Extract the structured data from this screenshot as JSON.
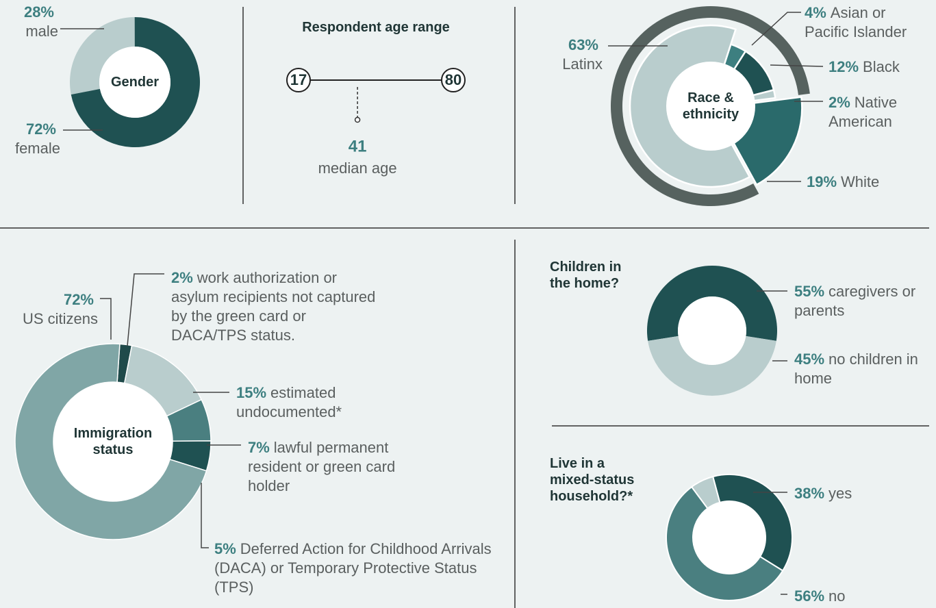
{
  "chart_data": [
    {
      "type": "donut",
      "title": "Gender",
      "categories": [
        "male",
        "female"
      ],
      "values": [
        28,
        72
      ],
      "value_labels": [
        "28%",
        "72%"
      ],
      "colors": [
        "#b9cdcd",
        "#1f5152"
      ]
    },
    {
      "type": "range",
      "title": "Respondent age range",
      "min": 17,
      "max": 80,
      "median": 41,
      "median_label": "median age"
    },
    {
      "type": "donut",
      "title": "Race & ethnicity",
      "categories": [
        "Asian or Pacific Islander",
        "Black",
        "Native American",
        "White",
        "Latinx"
      ],
      "values": [
        4,
        12,
        2,
        19,
        63
      ],
      "value_labels": [
        "4%",
        "12%",
        "2%",
        "19%",
        "63%"
      ],
      "colors": [
        "#3d7f80",
        "#1f5152",
        "#b9cdcd",
        "#2a6a6b",
        "#b9cdcd"
      ]
    },
    {
      "type": "donut",
      "title": "Immigration status",
      "categories": [
        "work authorization or asylum recipients not captured by the green card or DACA/TPS status.",
        "estimated undocumented*",
        "lawful permanent resident or green card holder",
        "Deferred Action for Childhood Arrivals (DACA) or Temporary Protective Status (TPS)",
        "US citizens"
      ],
      "values": [
        2,
        15,
        7,
        5,
        72
      ],
      "value_labels": [
        "2%",
        "15%",
        "7%",
        "5%",
        "72%"
      ],
      "colors": [
        "#1f4a4a",
        "#b9cdcd",
        "#4a7f80",
        "#1f5152",
        "#80a6a6"
      ]
    },
    {
      "type": "donut",
      "title": "Children in the home?",
      "categories": [
        "caregivers or parents",
        "no children in home"
      ],
      "values": [
        55,
        45
      ],
      "value_labels": [
        "55%",
        "45%"
      ],
      "colors": [
        "#1f5152",
        "#b9cdcd"
      ]
    },
    {
      "type": "donut",
      "title": "Live in a mixed-status household?*",
      "categories": [
        "yes",
        "no",
        null
      ],
      "values": [
        38,
        56,
        6
      ],
      "value_labels": [
        "38%",
        "56%",
        null
      ],
      "colors": [
        "#1f5152",
        "#4a7f80",
        "#b9cdcd"
      ]
    }
  ]
}
